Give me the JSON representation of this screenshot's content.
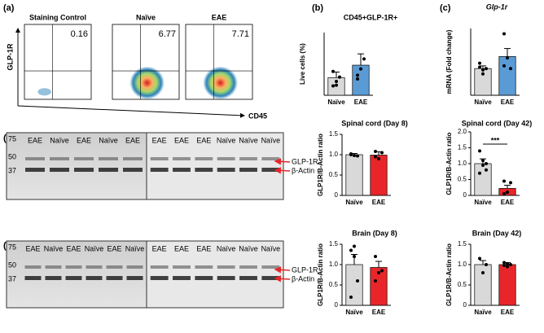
{
  "panel_labels": [
    "(a)",
    "(b)",
    "(c)",
    "(d)",
    "(e)"
  ],
  "flow_cytometry": {
    "y_label": "GLP-1R",
    "x_label": "CD45",
    "plots": [
      {
        "title": "Staining Control",
        "percent": "0.16"
      },
      {
        "title": "Naïve",
        "percent": "6.77"
      },
      {
        "title": "EAE",
        "percent": "7.71"
      }
    ]
  },
  "western_blots": [
    {
      "markers": [
        "75",
        "50",
        "37"
      ],
      "lanes_left": [
        "EAE",
        "Naïve",
        "EAE",
        "Naïve",
        "EAE"
      ],
      "lanes_right": [
        "EAE",
        "EAE",
        "EAE",
        "Naïve",
        "Naïve",
        "Naïve"
      ],
      "bands": [
        "GLP-1R",
        "β-Actin"
      ]
    },
    {
      "markers": [
        "75",
        "50",
        "37"
      ],
      "lanes_left": [
        "EAE",
        "Naïve",
        "EAE",
        "Naïve",
        "EAE",
        "Naïve"
      ],
      "lanes_right": [
        "EAE",
        "EAE",
        "EAE",
        "Naïve",
        "Naïve",
        "Naïve"
      ],
      "bands": [
        "GLP-1R",
        "β-Actin"
      ]
    }
  ],
  "chart_data": [
    {
      "type": "bar",
      "title": "CD45+GLP-1R+",
      "y_label": "Live cells (%)",
      "categories": [
        "Naïve",
        "EAE"
      ],
      "values": [
        2.8,
        4.8
      ],
      "errors": [
        0.9,
        1.8
      ],
      "colors": [
        "#d9d9d9",
        "#5b9bd5"
      ],
      "points": [
        [
          1.5,
          2.2,
          2.9,
          3.8,
          1.6
        ],
        [
          3.2,
          4.2,
          5.8,
          2.6
        ]
      ],
      "ylim": [
        0,
        10
      ]
    },
    {
      "type": "bar",
      "title": "Glp-1r",
      "title_italic": true,
      "y_label": "mRNA (Fold change)",
      "categories": [
        "Naïve",
        "EAE"
      ],
      "values": [
        1.0,
        1.45
      ],
      "errors": [
        0.1,
        0.3
      ],
      "colors": [
        "#d9d9d9",
        "#5b9bd5"
      ],
      "points": [
        [
          1.2,
          0.8,
          1.0,
          1.05,
          0.95
        ],
        [
          2.3,
          1.4,
          1.0,
          1.1
        ]
      ],
      "ylim": [
        0,
        2.5
      ]
    },
    {
      "type": "bar",
      "title": "Spinal cord (Day 8)",
      "y_label": "GLP1R/B-Actin ratio",
      "categories": [
        "Naïve",
        "EAE"
      ],
      "values": [
        1.0,
        0.99
      ],
      "errors": [
        0.03,
        0.08
      ],
      "colors": [
        "#d9d9d9",
        "#e8262a"
      ],
      "points": [
        [
          1.02,
          0.98,
          0.97,
          1.0
        ],
        [
          1.08,
          0.9,
          1.05,
          0.95
        ]
      ],
      "ylim": [
        0,
        1.5
      ],
      "yticks": [
        0,
        0.5,
        {
          "value": 1,
          "label": "1.0"
        },
        1.5
      ]
    },
    {
      "type": "bar",
      "title": "Spinal cord (Day 42)",
      "y_label": "GLP1R/B-Actin ratio",
      "categories": [
        "Naïve",
        "EAE"
      ],
      "values": [
        1.0,
        0.22
      ],
      "errors": [
        0.15,
        0.1
      ],
      "colors": [
        "#d9d9d9",
        "#e8262a"
      ],
      "points": [
        [
          1.4,
          1.1,
          1.0,
          0.7,
          0.95,
          0.8
        ],
        [
          0.05,
          0.1,
          0.4,
          0.45,
          0.1
        ]
      ],
      "annotation": "***",
      "ylim": [
        0,
        2
      ],
      "yticks": [
        0,
        0.5,
        {
          "value": 1,
          "label": "1.0"
        },
        1.5,
        {
          "value": 2,
          "label": "2.0"
        }
      ]
    },
    {
      "type": "bar",
      "title": "Brain (Day 8)",
      "y_label": "GLP1R/B-Actin ratio",
      "categories": [
        "Naïve",
        "EAE"
      ],
      "values": [
        1.0,
        0.93
      ],
      "errors": [
        0.25,
        0.15
      ],
      "colors": [
        "#d9d9d9",
        "#e8262a"
      ],
      "points": [
        [
          1.35,
          1.2,
          0.6,
          0.2,
          1.45
        ],
        [
          1.2,
          0.8,
          0.85,
          0.6
        ]
      ],
      "ylim": [
        0,
        1.5
      ],
      "yticks": [
        0,
        0.5,
        {
          "value": 1,
          "label": "1.0"
        },
        1.5
      ]
    },
    {
      "type": "bar",
      "title": "Brain (Day 42)",
      "y_label": "GLP1R/B-Actin ratio",
      "categories": [
        "Naïve",
        "EAE"
      ],
      "values": [
        1.0,
        1.0
      ],
      "errors": [
        0.1,
        0.05
      ],
      "colors": [
        "#d9d9d9",
        "#e8262a"
      ],
      "points": [
        [
          1.15,
          0.8,
          1.0
        ],
        [
          1.05,
          0.95,
          1.0,
          0.98,
          1.02
        ]
      ],
      "ylim": [
        0,
        1.5
      ],
      "yticks": [
        0,
        0.5,
        {
          "value": 1,
          "label": "1.0"
        },
        1.5
      ]
    }
  ]
}
